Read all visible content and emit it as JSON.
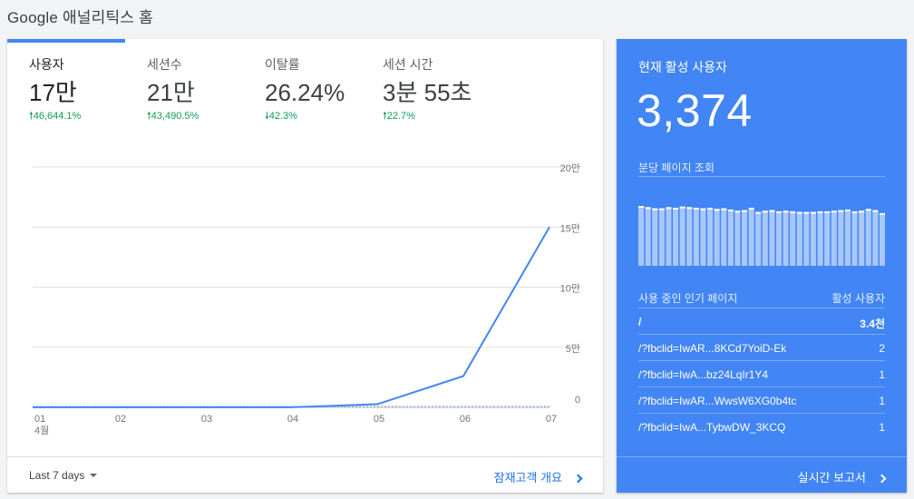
{
  "page": {
    "title": "Google 애널리틱스 홈"
  },
  "metrics": [
    {
      "label": "사용자",
      "value": "17만",
      "change": "46,644.1%",
      "direction": "up"
    },
    {
      "label": "세션수",
      "value": "21만",
      "change": "43,490.5%",
      "direction": "up"
    },
    {
      "label": "이탈률",
      "value": "26.24%",
      "change": "42.3%",
      "direction": "down"
    },
    {
      "label": "세션 시간",
      "value": "3분 55초",
      "change": "22.7%",
      "direction": "up"
    }
  ],
  "chart_data": {
    "type": "line",
    "categories": [
      "01",
      "02",
      "03",
      "04",
      "05",
      "06",
      "07"
    ],
    "category_sublabel": "4월",
    "values": [
      50,
      80,
      60,
      100,
      2600,
      26000,
      150000
    ],
    "comparison_values": [
      0,
      0,
      0,
      0,
      0,
      0,
      0
    ],
    "ylim": [
      0,
      200000
    ],
    "yticks": [
      {
        "value": 0,
        "label": "0"
      },
      {
        "value": 50000,
        "label": "5만"
      },
      {
        "value": 100000,
        "label": "10만"
      },
      {
        "value": 150000,
        "label": "15만"
      },
      {
        "value": 200000,
        "label": "20만"
      }
    ],
    "grid": true,
    "colors": {
      "line": "#4285f4",
      "grid": "#e0e0e0",
      "comparison": "#4285f4"
    }
  },
  "footer": {
    "date_range": "Last 7 days",
    "link": "잠재고객 개요"
  },
  "realtime": {
    "title": "현재 활성 사용자",
    "value": "3,374",
    "pageviews_label": "분당 페이지 조회",
    "pageviews_per_minute": [
      100,
      98,
      96,
      96,
      98,
      97,
      99,
      98,
      97,
      96,
      97,
      95,
      96,
      94,
      92,
      93,
      97,
      90,
      92,
      93,
      91,
      92,
      91,
      90,
      90,
      90,
      91,
      91,
      92,
      93,
      94,
      91,
      92,
      95,
      93,
      88
    ],
    "popular_pages_label": "사용 중인 인기 페이지",
    "active_users_label": "활성 사용자",
    "pages": [
      {
        "path": "/",
        "count": "3.4천"
      },
      {
        "path": "/?fbclid=IwAR...8KCd7YoiD-Ek",
        "count": "2"
      },
      {
        "path": "/?fbclid=IwA...bz24LqIr1Y4",
        "count": "1"
      },
      {
        "path": "/?fbclid=IwAR...WwsW6XG0b4tc",
        "count": "1"
      },
      {
        "path": "/?fbclid=IwA...TybwDW_3KCQ",
        "count": "1"
      }
    ],
    "report_link": "실시간 보고서",
    "colors": {
      "background": "#4285f4",
      "bar": "#a8c7fa",
      "bar_top": "#ffffff"
    }
  }
}
